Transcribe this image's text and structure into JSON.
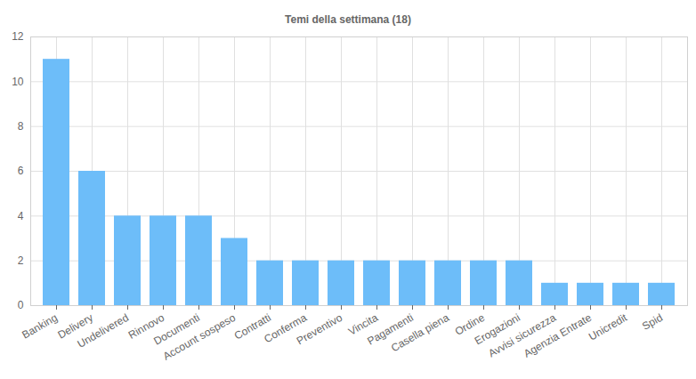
{
  "chart_data": {
    "type": "bar",
    "title": "Temi della settimana (18)",
    "categories": [
      "Banking",
      "Delivery",
      "Undelivered",
      "Rinnovo",
      "Documenti",
      "Account sospeso",
      "Contratti",
      "Conferma",
      "Preventivo",
      "Vincita",
      "Pagamenti",
      "Casella piena",
      "Ordine",
      "Erogazioni",
      "Avvisi sicurezza",
      "Agenzia Entrate",
      "Unicredit",
      "Spid"
    ],
    "values": [
      11,
      6,
      4,
      4,
      4,
      3,
      2,
      2,
      2,
      2,
      2,
      2,
      2,
      2,
      1,
      1,
      1,
      1
    ],
    "color": "#6dbdf9",
    "ylim": [
      0,
      12
    ],
    "yticks": [
      0,
      2,
      4,
      6,
      8,
      10,
      12
    ],
    "grid": true
  }
}
